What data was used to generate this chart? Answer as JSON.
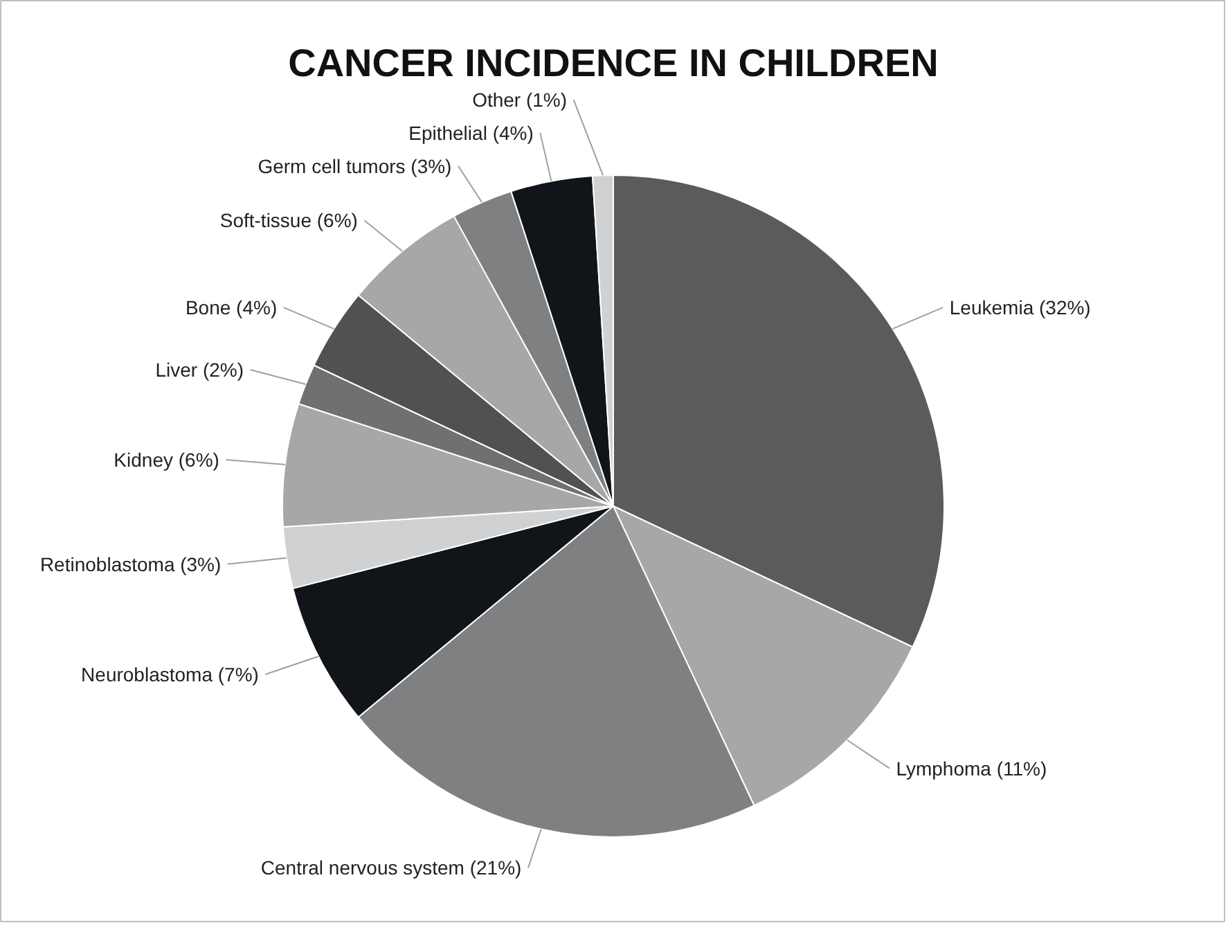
{
  "chart_data": {
    "type": "pie",
    "title": "CANCER INCIDENCE IN CHILDREN",
    "categories": [
      "Leukemia",
      "Lymphoma",
      "Central nervous system",
      "Neuroblastoma",
      "Retinoblastoma",
      "Kidney",
      "Liver",
      "Bone",
      "Soft-tissue",
      "Germ cell tumors",
      "Epithelial",
      "Other"
    ],
    "values": [
      32,
      11,
      21,
      7,
      3,
      6,
      2,
      4,
      6,
      3,
      4,
      1
    ],
    "colors": [
      "#595b5c",
      "#a5a7a8",
      "#7e8081",
      "#111418",
      "#d0d1d2",
      "#a5a7a8",
      "#6e7071",
      "#4f5152",
      "#a5a7a8",
      "#7e8081",
      "#111418",
      "#d0d1d2"
    ],
    "value_labels": [
      "(32%)",
      "(11%)",
      "(21%)",
      "(7%)",
      "(3%)",
      "(6%)",
      "(2%)",
      "(4%)",
      "(6%)",
      "(3%)",
      "(4%)",
      "(1%)"
    ]
  }
}
